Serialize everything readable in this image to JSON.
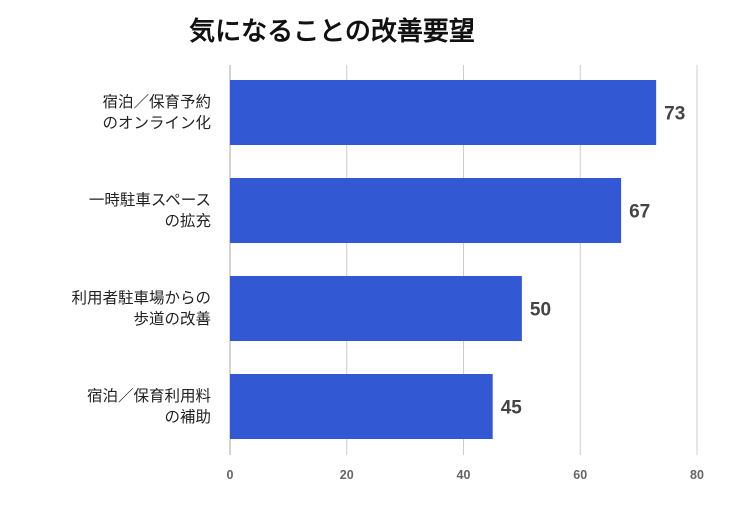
{
  "chart_data": {
    "type": "bar",
    "orientation": "horizontal",
    "title": "気になることの改善要望",
    "categories": [
      [
        "宿泊／保育予約",
        "のオンライン化"
      ],
      [
        "一時駐車スペース",
        "の拡充"
      ],
      [
        "利用者駐車場からの",
        "歩道の改善"
      ],
      [
        "宿泊／保育利用料",
        "の補助"
      ]
    ],
    "values": [
      73,
      67,
      50,
      45
    ],
    "xlim": [
      0,
      80
    ],
    "xticks": [
      0,
      20,
      40,
      60,
      80
    ],
    "grid": true,
    "legend": "none",
    "bar_color": "#3358d4"
  }
}
